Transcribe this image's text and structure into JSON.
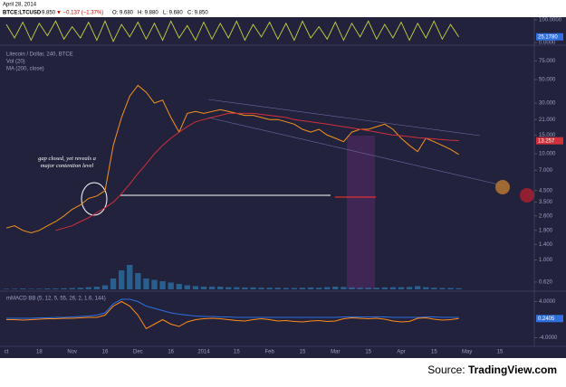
{
  "header": {
    "date": "April 28, 2014",
    "symbol": "BTCE:LTCUSD",
    "last": "9.850",
    "change": "▼ −0.137 (−1.37%)",
    "open": "O: 9.680",
    "high": "H: 9.880",
    "low": "L: 9.680",
    "close": "C: 9.850"
  },
  "source": {
    "prefix": "Source: ",
    "site": "TradingView.com"
  },
  "chart_data": [
    {
      "type": "line",
      "panel": "oscillator",
      "ylim": [
        0,
        100
      ],
      "yticks": [
        {
          "value": 100,
          "label": "100.0000"
        },
        {
          "value": 0,
          "label": "0.0000"
        }
      ],
      "last_label": {
        "value": 25.178,
        "label": "25.1780"
      },
      "series": [
        {
          "color": "#c8d43a",
          "values": [
            80,
            20,
            90,
            10,
            85,
            30,
            95,
            15,
            70,
            20,
            90,
            10,
            95,
            5,
            80,
            25,
            90,
            15,
            85,
            10,
            95,
            20,
            75,
            10,
            90,
            15,
            85,
            20,
            95,
            10,
            80,
            25,
            90,
            15,
            85,
            10,
            95,
            20,
            70,
            15,
            90,
            10,
            85,
            25,
            95,
            15,
            80,
            20,
            90,
            10,
            85,
            20,
            95,
            15,
            80,
            25,
            null,
            null,
            null,
            null,
            null
          ]
        }
      ]
    },
    {
      "type": "line",
      "panel": "price",
      "title": "Litecoin / Dollar, 240, BTCE",
      "indicators": [
        "Vol (20)",
        "MA (200, close)"
      ],
      "log_scale": true,
      "ylim": [
        0.55,
        90
      ],
      "yticks": [
        {
          "value": 75,
          "label": "75.000"
        },
        {
          "value": 50,
          "label": "50.000"
        },
        {
          "value": 30,
          "label": "30.000"
        },
        {
          "value": 21,
          "label": "21.000"
        },
        {
          "value": 15,
          "label": "15.000"
        },
        {
          "value": 10,
          "label": "10.000"
        },
        {
          "value": 7,
          "label": "7.000"
        },
        {
          "value": 4.5,
          "label": "4.500"
        },
        {
          "value": 3.5,
          "label": "3.500"
        },
        {
          "value": 2.6,
          "label": "2.600"
        },
        {
          "value": 1.9,
          "label": "1.900"
        },
        {
          "value": 1.4,
          "label": "1.400"
        },
        {
          "value": 1,
          "label": "1.000"
        },
        {
          "value": 0.62,
          "label": "0.620"
        }
      ],
      "last_label": {
        "value": 13.257,
        "label": "13.257"
      },
      "annotation": "gap closed, yet reveals a major contention level",
      "categories": [
        "ct",
        null,
        null,
        null,
        "18",
        null,
        null,
        null,
        "Nov",
        null,
        null,
        null,
        "16",
        null,
        null,
        null,
        "Dec",
        null,
        null,
        null,
        "16",
        null,
        null,
        null,
        "2014",
        null,
        null,
        null,
        "15",
        null,
        null,
        null,
        "Feb",
        null,
        null,
        null,
        "15",
        null,
        null,
        null,
        "Mar",
        null,
        null,
        null,
        "15",
        null,
        null,
        null,
        "Apr",
        null,
        null,
        null,
        "15",
        null,
        null,
        null,
        "May",
        null,
        null,
        null,
        "15"
      ],
      "series": [
        {
          "color": "#f7931a",
          "values": [
            2.0,
            2.1,
            1.9,
            1.8,
            1.9,
            2.1,
            2.3,
            2.6,
            3.0,
            3.3,
            3.8,
            4.0,
            4.5,
            12,
            22,
            35,
            44,
            38,
            30,
            32,
            22,
            16,
            24,
            25,
            24,
            25,
            26,
            25,
            24,
            23,
            23,
            22,
            21,
            21,
            20,
            19,
            17,
            16,
            17,
            15,
            14,
            13,
            16,
            17,
            17,
            18,
            19,
            17,
            14,
            12,
            10.5,
            14,
            13,
            12,
            11,
            9.85,
            null,
            null,
            null,
            null,
            null
          ]
        },
        {
          "color": "#d0303a",
          "values": [
            null,
            null,
            null,
            null,
            null,
            null,
            1.9,
            2.0,
            2.1,
            2.3,
            2.5,
            2.8,
            3.1,
            3.5,
            4.2,
            5.2,
            6.5,
            8,
            10,
            12,
            14,
            16,
            18,
            20,
            21,
            22,
            23,
            24,
            24,
            24,
            24,
            23.5,
            23,
            22.5,
            22,
            21,
            20.5,
            20,
            19.5,
            19,
            18.5,
            18,
            17.5,
            17,
            16.5,
            16,
            15.5,
            15,
            14.8,
            14.5,
            14.2,
            14,
            13.8,
            13.6,
            13.4,
            13.3,
            null,
            null,
            null,
            null,
            null
          ]
        }
      ]
    },
    {
      "type": "bar",
      "panel": "volume",
      "color": "#2a6fa0",
      "ylim": [
        0,
        100
      ],
      "values": [
        2,
        2,
        3,
        2,
        2,
        3,
        3,
        4,
        5,
        6,
        8,
        10,
        15,
        40,
        70,
        90,
        60,
        40,
        35,
        30,
        25,
        20,
        15,
        12,
        10,
        10,
        10,
        8,
        8,
        7,
        7,
        6,
        6,
        6,
        5,
        5,
        6,
        7,
        6,
        8,
        10,
        9,
        7,
        6,
        6,
        6,
        7,
        8,
        8,
        9,
        12,
        8,
        6,
        5,
        5,
        4,
        null,
        null,
        null,
        null,
        null
      ]
    },
    {
      "type": "line",
      "panel": "macd",
      "title": "mMACD BB (5, 12, 5, 55, 26, 2, 1.6, 144)",
      "ylim": [
        -5.5,
        5.5
      ],
      "yticks": [
        {
          "value": 4,
          "label": "4.0000"
        },
        {
          "value": -4,
          "label": "-4.0000"
        }
      ],
      "last_label": {
        "value": 0.2405,
        "label": "0.2405"
      },
      "series": [
        {
          "color": "#2f6fe0",
          "values": [
            0.3,
            0.3,
            0.3,
            0.3,
            0.4,
            0.4,
            0.5,
            0.5,
            0.6,
            0.7,
            0.8,
            1,
            1.5,
            3.5,
            4.5,
            4.5,
            4,
            3,
            2.5,
            2,
            1.5,
            1.2,
            1,
            0.8,
            0.7,
            0.7,
            0.6,
            0.6,
            0.5,
            0.5,
            0.5,
            0.5,
            0.5,
            0.5,
            0.5,
            0.5,
            0.5,
            0.5,
            0.5,
            0.5,
            0.5,
            0.6,
            0.6,
            0.6,
            0.6,
            0.6,
            0.6,
            0.5,
            0.5,
            0.5,
            0.5,
            0.6,
            0.6,
            0.5,
            0.5,
            0.5,
            null,
            null,
            null,
            null,
            null
          ]
        },
        {
          "color": "#ff8c1a",
          "values": [
            0,
            0,
            -0.1,
            0,
            0.1,
            0.2,
            0.2,
            0.3,
            0.3,
            0.4,
            0.5,
            0.5,
            1,
            3,
            4,
            3,
            1,
            -2,
            -1,
            0,
            -1,
            -1.5,
            -0.5,
            0,
            0.2,
            0.3,
            0.2,
            0,
            -0.2,
            -0.3,
            0,
            0.2,
            0,
            -0.3,
            -0.2,
            -0.4,
            -0.5,
            -0.3,
            -0.2,
            -0.4,
            -0.3,
            0.2,
            0.4,
            0.3,
            0.2,
            0.3,
            0.1,
            -0.3,
            -0.5,
            -0.4,
            0.3,
            0.4,
            0.1,
            -0.1,
            0,
            0.24,
            null,
            null,
            null,
            null,
            null
          ]
        }
      ]
    }
  ]
}
